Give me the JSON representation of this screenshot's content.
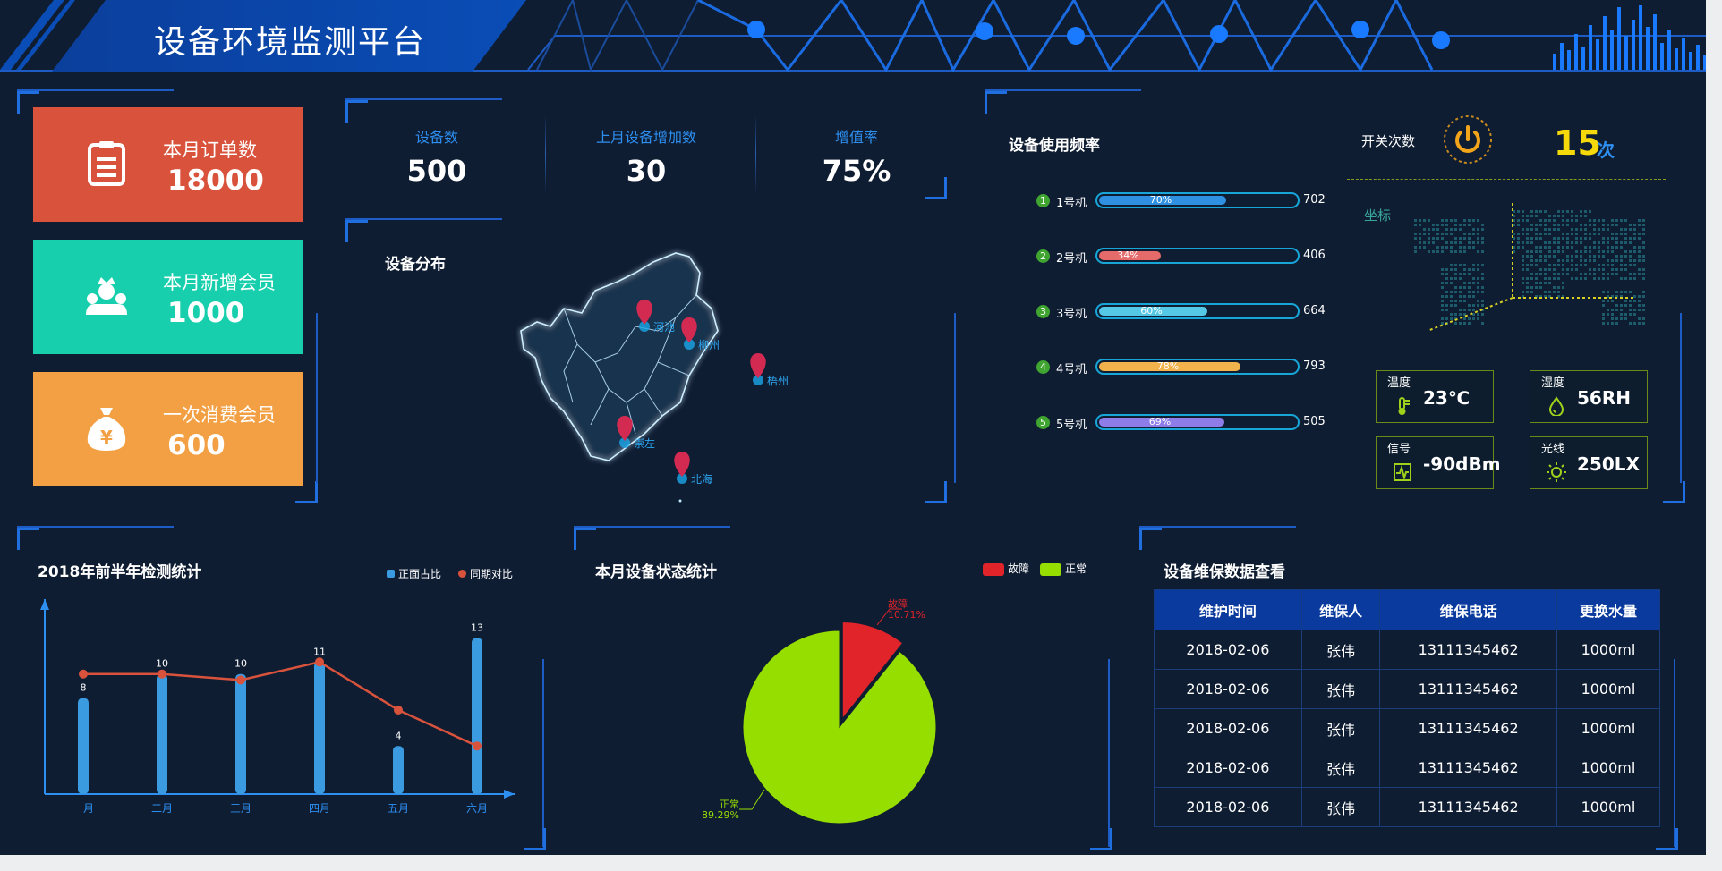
{
  "header": {
    "title": "设备环境监测平台"
  },
  "kpis": [
    {
      "label": "本月订单数",
      "value": "18000",
      "color": "#d9533c",
      "icon": "clipboard-icon"
    },
    {
      "label": "本月新增会员",
      "value": "1000",
      "color": "#18cfad",
      "icon": "members-icon"
    },
    {
      "label": "一次消费会员",
      "value": "600",
      "color": "#f2a043",
      "icon": "money-bag-icon"
    }
  ],
  "stats": [
    {
      "label": "设备数",
      "value": "500"
    },
    {
      "label": "上月设备增加数",
      "value": "30"
    },
    {
      "label": "增值率",
      "value": "75%"
    }
  ],
  "distribution": {
    "title": "设备分布",
    "cities": [
      "河池",
      "柳州",
      "梧州",
      "崇左",
      "北海"
    ]
  },
  "usage": {
    "title": "设备使用频率",
    "items": [
      {
        "rank": "1",
        "name": "1号机",
        "percent": 70,
        "pct_label": "70%",
        "count": "702",
        "color": "#2f8fe0"
      },
      {
        "rank": "2",
        "name": "2号机",
        "percent": 34,
        "pct_label": "34%",
        "count": "406",
        "color": "#e56a6a"
      },
      {
        "rank": "3",
        "name": "3号机",
        "percent": 60,
        "pct_label": "60%",
        "count": "664",
        "color": "#55c8e6"
      },
      {
        "rank": "4",
        "name": "4号机",
        "percent": 78,
        "pct_label": "78%",
        "count": "793",
        "color": "#f2b24c"
      },
      {
        "rank": "5",
        "name": "5号机",
        "percent": 69,
        "pct_label": "69%",
        "count": "505",
        "color": "#8e7ce8"
      }
    ]
  },
  "switch": {
    "label": "开关次数",
    "value": "15",
    "unit": "次"
  },
  "coordinate": {
    "label": "坐标"
  },
  "environment": [
    {
      "label": "温度",
      "value": "23℃",
      "icon": "thermometer-icon"
    },
    {
      "label": "湿度",
      "value": "56RH",
      "icon": "humidity-drop-icon"
    },
    {
      "label": "信号",
      "value": "-90dBm",
      "icon": "signal-icon"
    },
    {
      "label": "光线",
      "value": "250LX",
      "icon": "sun-icon"
    }
  ],
  "detection": {
    "title": "2018年前半年检测统计",
    "legend": [
      "正面占比",
      "同期对比"
    ]
  },
  "status": {
    "title": "本月设备状态统计",
    "legend": [
      "故障",
      "正常"
    ],
    "fault_label": "故障",
    "fault_pct": "10.71%",
    "normal_label": "正常",
    "normal_pct": "89.29%"
  },
  "maintenance": {
    "title": "设备维保数据查看",
    "columns": [
      "维护时间",
      "维保人",
      "维保电话",
      "更换水量"
    ],
    "rows": [
      [
        "2018-02-06",
        "张伟",
        "13111345462",
        "1000ml"
      ],
      [
        "2018-02-06",
        "张伟",
        "13111345462",
        "1000ml"
      ],
      [
        "2018-02-06",
        "张伟",
        "13111345462",
        "1000ml"
      ],
      [
        "2018-02-06",
        "张伟",
        "13111345462",
        "1000ml"
      ],
      [
        "2018-02-06",
        "张伟",
        "13111345462",
        "1000ml"
      ]
    ]
  },
  "chart_data": [
    {
      "type": "bar",
      "title": "2018年前半年检测统计",
      "categories": [
        "一月",
        "二月",
        "三月",
        "四月",
        "五月",
        "六月"
      ],
      "series": [
        {
          "name": "正面占比",
          "type": "bar",
          "values": [
            8,
            10,
            10,
            11,
            4,
            13
          ],
          "color": "#3a9be0"
        },
        {
          "name": "同期对比",
          "type": "line",
          "values": [
            10,
            10,
            9.5,
            11,
            7,
            4
          ],
          "color": "#d9533c"
        }
      ],
      "ylim": [
        0,
        14
      ],
      "grid": false,
      "legend": "top-right"
    },
    {
      "type": "pie",
      "title": "本月设备状态统计",
      "categories": [
        "故障",
        "正常"
      ],
      "values": [
        10.71,
        89.29
      ],
      "colors": [
        "#e0242a",
        "#96dd00"
      ],
      "legend": "top-right"
    }
  ]
}
